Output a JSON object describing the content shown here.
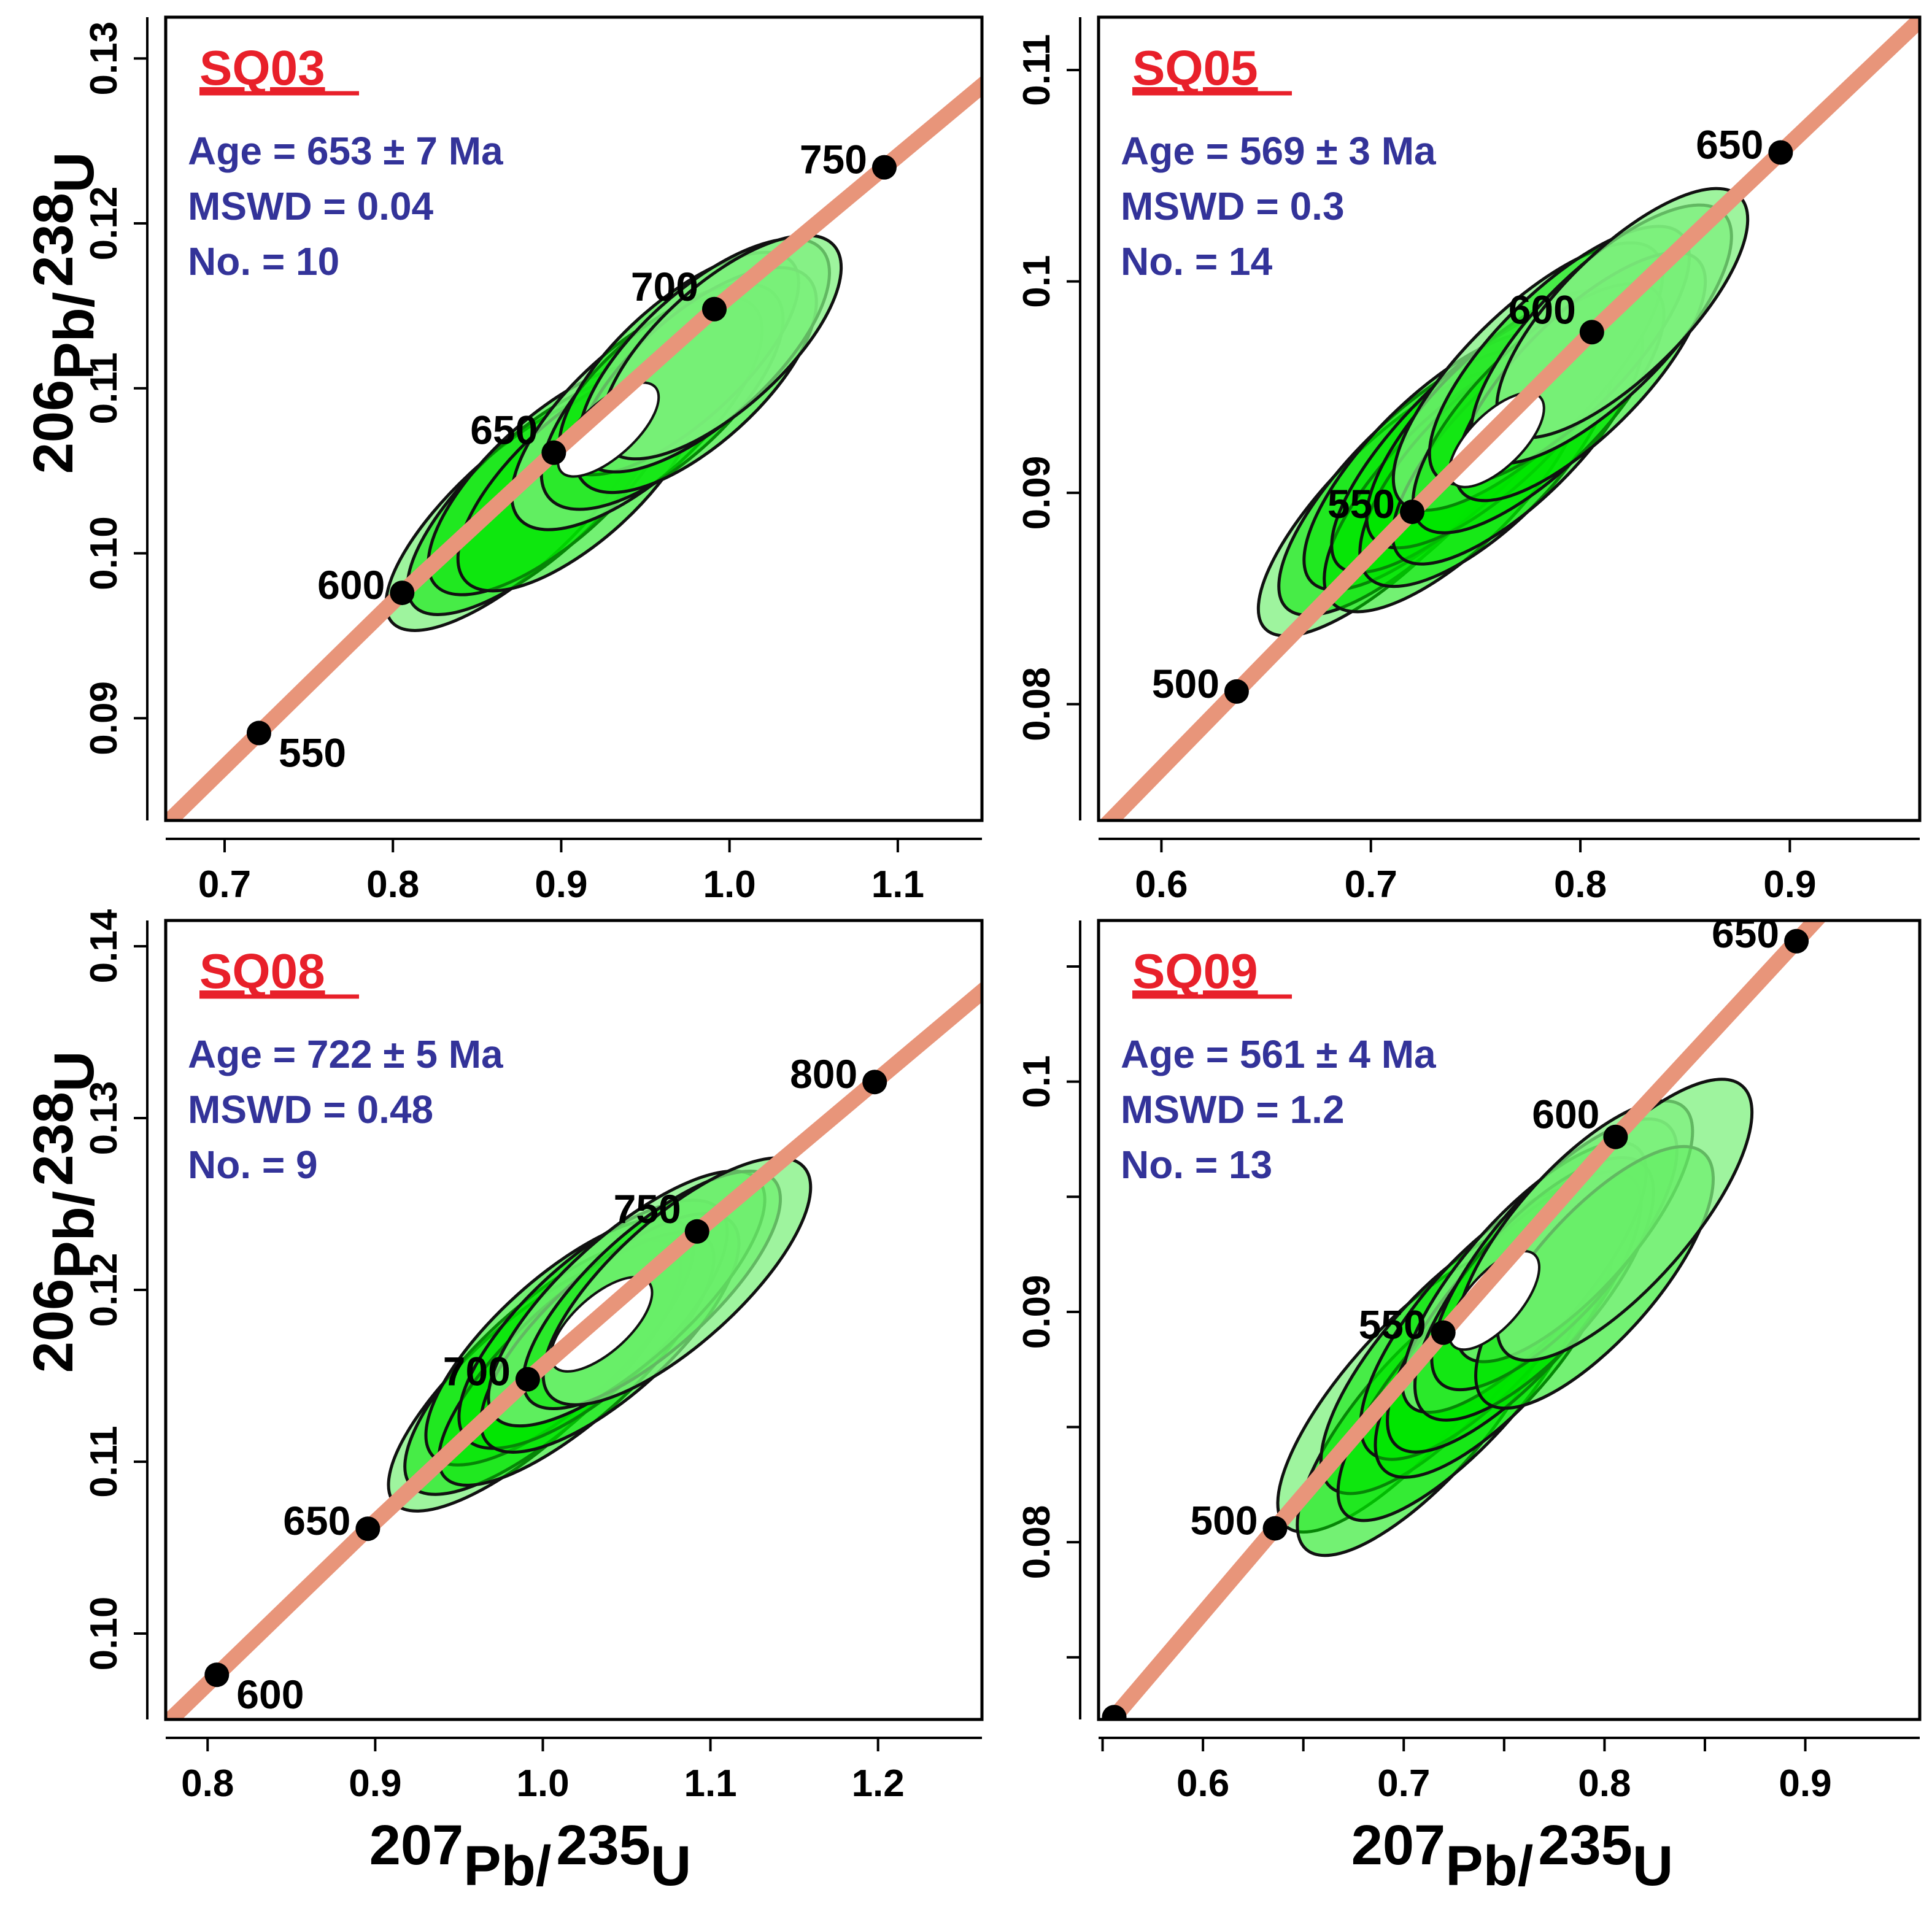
{
  "figure": {
    "x_axis_label": {
      "main": "Pb/",
      "pre": "207",
      "post": "235",
      "tail": "U"
    },
    "y_axis_label": {
      "main": "Pb/",
      "pre": "206",
      "post": "238",
      "tail": "U"
    }
  },
  "colors": {
    "concordia": "#e8957a",
    "ellipse_light": "#7ef07e",
    "ellipse_dark": "#00e600",
    "title": "#e8202a",
    "stats": "#333399",
    "axis": "#000000"
  },
  "chart_data": [
    {
      "type": "scatter",
      "subtype": "concordia-diagram",
      "sample": "SQ03",
      "stats": {
        "age": "Age = 653 ± 7 Ma",
        "mswd": "MSWD = 0.04",
        "n": "No. = 10"
      },
      "xlim": [
        0.665,
        1.15
      ],
      "ylim": [
        0.0838,
        0.1325
      ],
      "xticks": [
        0.7,
        0.8,
        0.9,
        1.0,
        1.1
      ],
      "xtick_labels": [
        "0.7",
        "0.8",
        "0.9",
        "1.0",
        "1.1"
      ],
      "yticks": [
        0.09,
        0.1,
        0.11,
        0.12,
        0.13
      ],
      "ytick_labels": [
        "0.09",
        "0.10",
        "0.11",
        "0.12",
        "0.13"
      ],
      "concordia_range": [
        0.6,
        1.25
      ],
      "age_marks": [
        {
          "age": 550,
          "x": 0.7204,
          "y": 0.0891,
          "label": "550",
          "label_pos": "below-right"
        },
        {
          "age": 600,
          "x": 0.8055,
          "y": 0.0976,
          "label": "600",
          "label_pos": "left"
        },
        {
          "age": 650,
          "x": 0.8956,
          "y": 0.1061,
          "label": "650",
          "label_pos": "upper-left"
        },
        {
          "age": 700,
          "x": 0.991,
          "y": 0.1148,
          "label": "700",
          "label_pos": "upper-left"
        },
        {
          "age": 750,
          "x": 1.092,
          "y": 0.1234,
          "label": "750",
          "label_pos": "left"
        }
      ],
      "ellipses": [
        {
          "cx": 0.872,
          "cy": 0.1025,
          "rx_frac": 0.13,
          "ry_frac": 0.058,
          "shade": "light"
        },
        {
          "cx": 0.885,
          "cy": 0.1035,
          "rx_frac": 0.13,
          "ry_frac": 0.06,
          "shade": "dark"
        },
        {
          "cx": 0.895,
          "cy": 0.1045,
          "rx_frac": 0.125,
          "ry_frac": 0.062,
          "shade": "dark"
        },
        {
          "cx": 0.91,
          "cy": 0.1045,
          "rx_frac": 0.12,
          "ry_frac": 0.062,
          "shade": "dark"
        },
        {
          "cx": 0.945,
          "cy": 0.1085,
          "rx_frac": 0.125,
          "ry_frac": 0.065,
          "shade": "light"
        },
        {
          "cx": 0.96,
          "cy": 0.1095,
          "rx_frac": 0.12,
          "ry_frac": 0.065,
          "shade": "dark"
        },
        {
          "cx": 0.97,
          "cy": 0.1115,
          "rx_frac": 0.12,
          "ry_frac": 0.06,
          "shade": "dark"
        },
        {
          "cx": 0.98,
          "cy": 0.1105,
          "rx_frac": 0.12,
          "ry_frac": 0.064,
          "shade": "dark"
        },
        {
          "cx": 0.985,
          "cy": 0.112,
          "rx_frac": 0.125,
          "ry_frac": 0.065,
          "shade": "light"
        },
        {
          "cx": 0.995,
          "cy": 0.1125,
          "rx_frac": 0.12,
          "ry_frac": 0.062,
          "shade": "light"
        }
      ],
      "hole": {
        "cx": 0.928,
        "cy": 0.1075,
        "rx_frac": 0.05,
        "ry_frac": 0.027
      }
    },
    {
      "type": "scatter",
      "subtype": "concordia-diagram",
      "sample": "SQ05",
      "stats": {
        "age": "Age = 569 ± 3 Ma",
        "mswd": "MSWD = 0.3",
        "n": "No. = 14"
      },
      "xlim": [
        0.57,
        0.962
      ],
      "ylim": [
        0.0745,
        0.1125
      ],
      "xticks": [
        0.6,
        0.7,
        0.8,
        0.9
      ],
      "xtick_labels": [
        "0.6",
        "0.7",
        "0.8",
        "0.9"
      ],
      "yticks": [
        0.08,
        0.09,
        0.1,
        0.11
      ],
      "ytick_labels": [
        "0.08",
        "0.09",
        "0.1",
        "0.11"
      ],
      "concordia_range": [
        0.5,
        1.0
      ],
      "age_marks": [
        {
          "age": 500,
          "x": 0.6359,
          "y": 0.0806,
          "label": "500",
          "label_pos": "left"
        },
        {
          "age": 550,
          "x": 0.7197,
          "y": 0.0891,
          "label": "550",
          "label_pos": "left"
        },
        {
          "age": 600,
          "x": 0.8055,
          "y": 0.0976,
          "label": "600",
          "label_pos": "upper-left"
        },
        {
          "age": 650,
          "x": 0.8956,
          "y": 0.1061,
          "label": "650",
          "label_pos": "left"
        }
      ],
      "ellipses": [
        {
          "cx": 0.71,
          "cy": 0.0895,
          "rx_frac": 0.14,
          "ry_frac": 0.06,
          "shade": "light"
        },
        {
          "cx": 0.72,
          "cy": 0.0905,
          "rx_frac": 0.14,
          "ry_frac": 0.062,
          "shade": "dark"
        },
        {
          "cx": 0.73,
          "cy": 0.0915,
          "rx_frac": 0.135,
          "ry_frac": 0.062,
          "shade": "dark"
        },
        {
          "cx": 0.74,
          "cy": 0.0905,
          "rx_frac": 0.135,
          "ry_frac": 0.065,
          "shade": "dark"
        },
        {
          "cx": 0.745,
          "cy": 0.0925,
          "rx_frac": 0.14,
          "ry_frac": 0.06,
          "shade": "dark"
        },
        {
          "cx": 0.755,
          "cy": 0.0915,
          "rx_frac": 0.13,
          "ry_frac": 0.065,
          "shade": "dark"
        },
        {
          "cx": 0.76,
          "cy": 0.0935,
          "rx_frac": 0.135,
          "ry_frac": 0.063,
          "shade": "dark"
        },
        {
          "cx": 0.77,
          "cy": 0.0925,
          "rx_frac": 0.13,
          "ry_frac": 0.06,
          "shade": "dark"
        },
        {
          "cx": 0.775,
          "cy": 0.0955,
          "rx_frac": 0.14,
          "ry_frac": 0.065,
          "shade": "light"
        },
        {
          "cx": 0.78,
          "cy": 0.094,
          "rx_frac": 0.13,
          "ry_frac": 0.062,
          "shade": "dark"
        },
        {
          "cx": 0.79,
          "cy": 0.0965,
          "rx_frac": 0.135,
          "ry_frac": 0.063,
          "shade": "dark"
        },
        {
          "cx": 0.8,
          "cy": 0.0955,
          "rx_frac": 0.13,
          "ry_frac": 0.06,
          "shade": "dark"
        },
        {
          "cx": 0.81,
          "cy": 0.0975,
          "rx_frac": 0.135,
          "ry_frac": 0.064,
          "shade": "light"
        },
        {
          "cx": 0.82,
          "cy": 0.0985,
          "rx_frac": 0.13,
          "ry_frac": 0.062,
          "shade": "light"
        }
      ],
      "hole": {
        "cx": 0.76,
        "cy": 0.0925,
        "rx_frac": 0.048,
        "ry_frac": 0.027
      }
    },
    {
      "type": "scatter",
      "subtype": "concordia-diagram",
      "sample": "SQ08",
      "stats": {
        "age": "Age = 722 ± 5 Ma",
        "mswd": "MSWD = 0.48",
        "n": "No. = 9"
      },
      "xlim": [
        0.775,
        1.262
      ],
      "ylim": [
        0.095,
        0.1415
      ],
      "xticks": [
        0.8,
        0.9,
        1.0,
        1.1,
        1.2
      ],
      "xtick_labels": [
        "0.8",
        "0.9",
        "1.0",
        "1.1",
        "1.2"
      ],
      "yticks": [
        0.1,
        0.11,
        0.12,
        0.13,
        0.14
      ],
      "ytick_labels": [
        "0.10",
        "0.11",
        "0.12",
        "0.13",
        "0.14"
      ],
      "concordia_range": [
        0.7,
        1.35
      ],
      "age_marks": [
        {
          "age": 600,
          "x": 0.8055,
          "y": 0.0976,
          "label": "600",
          "label_pos": "below-right"
        },
        {
          "age": 650,
          "x": 0.8956,
          "y": 0.1061,
          "label": "650",
          "label_pos": "left"
        },
        {
          "age": 700,
          "x": 0.991,
          "y": 0.1148,
          "label": "700",
          "label_pos": "left"
        },
        {
          "age": 750,
          "x": 1.092,
          "y": 0.1234,
          "label": "750",
          "label_pos": "upper-left"
        },
        {
          "age": 800,
          "x": 1.198,
          "y": 0.1321,
          "label": "800",
          "label_pos": "left"
        }
      ],
      "ellipses": [
        {
          "cx": 0.99,
          "cy": 0.1145,
          "rx_frac": 0.14,
          "ry_frac": 0.06,
          "shade": "light"
        },
        {
          "cx": 1.0,
          "cy": 0.1155,
          "rx_frac": 0.14,
          "ry_frac": 0.062,
          "shade": "dark"
        },
        {
          "cx": 1.01,
          "cy": 0.117,
          "rx_frac": 0.135,
          "ry_frac": 0.063,
          "shade": "dark"
        },
        {
          "cx": 1.02,
          "cy": 0.116,
          "rx_frac": 0.14,
          "ry_frac": 0.06,
          "shade": "dark"
        },
        {
          "cx": 1.03,
          "cy": 0.118,
          "rx_frac": 0.135,
          "ry_frac": 0.065,
          "shade": "dark"
        },
        {
          "cx": 1.04,
          "cy": 0.1175,
          "rx_frac": 0.13,
          "ry_frac": 0.062,
          "shade": "dark"
        },
        {
          "cx": 1.05,
          "cy": 0.1195,
          "rx_frac": 0.14,
          "ry_frac": 0.063,
          "shade": "light"
        },
        {
          "cx": 1.065,
          "cy": 0.12,
          "rx_frac": 0.13,
          "ry_frac": 0.06,
          "shade": "dark"
        },
        {
          "cx": 1.08,
          "cy": 0.1205,
          "rx_frac": 0.135,
          "ry_frac": 0.063,
          "shade": "light"
        }
      ],
      "hole": {
        "cx": 1.035,
        "cy": 0.118,
        "rx_frac": 0.05,
        "ry_frac": 0.028
      }
    },
    {
      "type": "scatter",
      "subtype": "concordia-diagram",
      "sample": "SQ09",
      "stats": {
        "age": "Age = 561 ± 4 Ma",
        "mswd": "MSWD = 1.2",
        "n": "No. = 13"
      },
      "xlim": [
        0.548,
        0.957
      ],
      "ylim": [
        0.0723,
        0.107
      ],
      "xticks": [
        0.6,
        0.7,
        0.8,
        0.9
      ],
      "xtick_labels": [
        "0.6",
        "0.7",
        "0.8",
        "0.9"
      ],
      "minor_xticks": [
        0.55,
        0.65,
        0.75,
        0.85
      ],
      "yticks": [
        0.08,
        0.09,
        0.1
      ],
      "ytick_labels": [
        "0.08",
        "0.09",
        "0.1"
      ],
      "minor_yticks": [
        0.075,
        0.085,
        0.095,
        0.105
      ],
      "concordia_range": [
        0.5,
        1.0
      ],
      "age_marks": [
        {
          "age": 450,
          "x": 0.5558,
          "y": 0.0724,
          "label": "",
          "label_pos": "none"
        },
        {
          "age": 500,
          "x": 0.6359,
          "y": 0.0806,
          "label": "500",
          "label_pos": "left"
        },
        {
          "age": 550,
          "x": 0.7197,
          "y": 0.0891,
          "label": "550",
          "label_pos": "left"
        },
        {
          "age": 600,
          "x": 0.8055,
          "y": 0.0976,
          "label": "600",
          "label_pos": "upper-left"
        },
        {
          "age": 650,
          "x": 0.8956,
          "y": 0.1061,
          "label": "650",
          "label_pos": "left"
        }
      ],
      "ellipses": [
        {
          "cx": 0.7,
          "cy": 0.0865,
          "rx_frac": 0.14,
          "ry_frac": 0.06,
          "shade": "light"
        },
        {
          "cx": 0.71,
          "cy": 0.0855,
          "rx_frac": 0.14,
          "ry_frac": 0.062,
          "shade": "dark"
        },
        {
          "cx": 0.72,
          "cy": 0.088,
          "rx_frac": 0.135,
          "ry_frac": 0.063,
          "shade": "dark"
        },
        {
          "cx": 0.73,
          "cy": 0.087,
          "rx_frac": 0.14,
          "ry_frac": 0.06,
          "shade": "dark"
        },
        {
          "cx": 0.74,
          "cy": 0.0895,
          "rx_frac": 0.135,
          "ry_frac": 0.065,
          "shade": "dark"
        },
        {
          "cx": 0.745,
          "cy": 0.0885,
          "rx_frac": 0.13,
          "ry_frac": 0.062,
          "shade": "dark"
        },
        {
          "cx": 0.755,
          "cy": 0.09,
          "rx_frac": 0.14,
          "ry_frac": 0.063,
          "shade": "dark"
        },
        {
          "cx": 0.76,
          "cy": 0.0915,
          "rx_frac": 0.135,
          "ry_frac": 0.06,
          "shade": "light"
        },
        {
          "cx": 0.765,
          "cy": 0.091,
          "rx_frac": 0.13,
          "ry_frac": 0.064,
          "shade": "dark"
        },
        {
          "cx": 0.775,
          "cy": 0.0925,
          "rx_frac": 0.135,
          "ry_frac": 0.062,
          "shade": "dark"
        },
        {
          "cx": 0.785,
          "cy": 0.0935,
          "rx_frac": 0.13,
          "ry_frac": 0.06,
          "shade": "light"
        },
        {
          "cx": 0.795,
          "cy": 0.0915,
          "rx_frac": 0.13,
          "ry_frac": 0.062,
          "shade": "dark"
        },
        {
          "cx": 0.81,
          "cy": 0.094,
          "rx_frac": 0.14,
          "ry_frac": 0.065,
          "shade": "light"
        }
      ],
      "hole": {
        "cx": 0.745,
        "cy": 0.0905,
        "rx_frac": 0.048,
        "ry_frac": 0.027
      }
    }
  ]
}
